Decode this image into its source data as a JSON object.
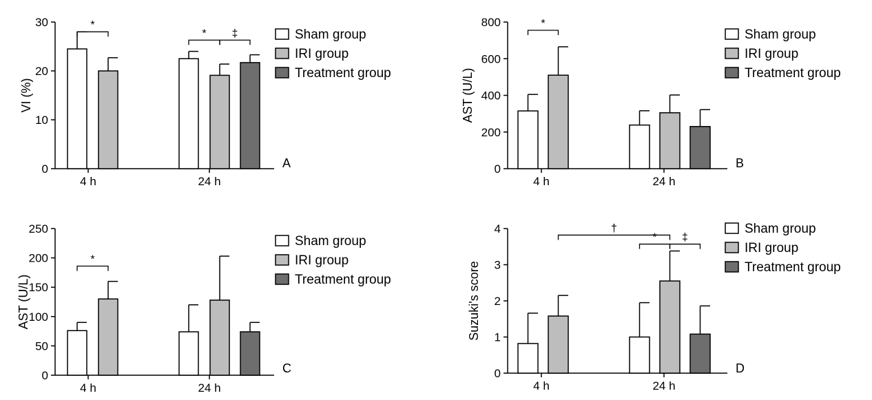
{
  "colors": {
    "sham": "#ffffff",
    "iri": "#bdbdbd",
    "treatment": "#6e6e6e",
    "stroke": "#000000"
  },
  "chart_data": [
    {
      "type": "bar",
      "panel": "A",
      "ylabel": "VI (%)",
      "ylim": [
        0,
        30
      ],
      "yticks": [
        0,
        10,
        20,
        30
      ],
      "categories": [
        "4 h",
        "24 h"
      ],
      "legend": [
        "Sham group",
        "IRI group",
        "Treatment group"
      ],
      "bars": [
        {
          "group": 0,
          "series": 0,
          "value": 24.5,
          "err": 3.5
        },
        {
          "group": 0,
          "series": 1,
          "value": 20.0,
          "err": 2.7
        },
        {
          "group": 1,
          "series": 0,
          "value": 22.5,
          "err": 1.5
        },
        {
          "group": 1,
          "series": 1,
          "value": 19.1,
          "err": 2.3
        },
        {
          "group": 1,
          "series": 2,
          "value": 21.7,
          "err": 1.6
        }
      ],
      "significance": [
        {
          "group_from": 0,
          "series_from": 0,
          "group_to": 0,
          "series_to": 1,
          "y": 28.0,
          "label": "*"
        },
        {
          "group_from": 1,
          "series_from": 0,
          "group_to": 1,
          "series_to": 1,
          "y": 26.3,
          "label": "*"
        },
        {
          "group_from": 1,
          "series_from": 1,
          "group_to": 1,
          "series_to": 2,
          "y": 26.3,
          "label": "‡"
        }
      ]
    },
    {
      "type": "bar",
      "panel": "B",
      "ylabel": "AST (U/L)",
      "ylim": [
        0,
        800
      ],
      "yticks": [
        0,
        200,
        400,
        600,
        800
      ],
      "categories": [
        "4 h",
        "24 h"
      ],
      "legend": [
        "Sham group",
        "IRI group",
        "Treatment group"
      ],
      "bars": [
        {
          "group": 0,
          "series": 0,
          "value": 315,
          "err": 90
        },
        {
          "group": 0,
          "series": 1,
          "value": 510,
          "err": 155
        },
        {
          "group": 1,
          "series": 0,
          "value": 238,
          "err": 78
        },
        {
          "group": 1,
          "series": 1,
          "value": 305,
          "err": 97
        },
        {
          "group": 1,
          "series": 2,
          "value": 230,
          "err": 92
        }
      ],
      "significance": [
        {
          "group_from": 0,
          "series_from": 0,
          "group_to": 0,
          "series_to": 1,
          "y": 755,
          "label": "*"
        }
      ]
    },
    {
      "type": "bar",
      "panel": "C",
      "ylabel": "AST (U/L)",
      "ylim": [
        0,
        250
      ],
      "yticks": [
        0,
        50,
        100,
        150,
        200,
        250
      ],
      "categories": [
        "4 h",
        "24 h"
      ],
      "legend": [
        "Sham group",
        "IRI group",
        "Treatment group"
      ],
      "bars": [
        {
          "group": 0,
          "series": 0,
          "value": 76,
          "err": 14
        },
        {
          "group": 0,
          "series": 1,
          "value": 130,
          "err": 30
        },
        {
          "group": 1,
          "series": 0,
          "value": 74,
          "err": 46
        },
        {
          "group": 1,
          "series": 1,
          "value": 128,
          "err": 75
        },
        {
          "group": 1,
          "series": 2,
          "value": 74,
          "err": 16
        }
      ],
      "significance": [
        {
          "group_from": 0,
          "series_from": 0,
          "group_to": 0,
          "series_to": 1,
          "y": 186,
          "label": "*"
        }
      ]
    },
    {
      "type": "bar",
      "panel": "D",
      "ylabel": "Suzuki's score",
      "ylim": [
        0,
        4
      ],
      "yticks": [
        0,
        1,
        2,
        3,
        4
      ],
      "categories": [
        "4 h",
        "24 h"
      ],
      "legend": [
        "Sham group",
        "IRI group",
        "Treatment group"
      ],
      "bars": [
        {
          "group": 0,
          "series": 0,
          "value": 0.82,
          "err": 0.84
        },
        {
          "group": 0,
          "series": 1,
          "value": 1.58,
          "err": 0.57
        },
        {
          "group": 1,
          "series": 0,
          "value": 1.0,
          "err": 0.95
        },
        {
          "group": 1,
          "series": 1,
          "value": 2.55,
          "err": 0.83
        },
        {
          "group": 1,
          "series": 2,
          "value": 1.08,
          "err": 0.78
        }
      ],
      "significance": [
        {
          "group_from": 0,
          "series_from": 1,
          "group_to": 1,
          "series_to": 1,
          "y": 3.82,
          "label": "†"
        },
        {
          "group_from": 1,
          "series_from": 0,
          "group_to": 1,
          "series_to": 1,
          "y": 3.57,
          "label": "*"
        },
        {
          "group_from": 1,
          "series_from": 1,
          "group_to": 1,
          "series_to": 2,
          "y": 3.57,
          "label": "‡"
        }
      ]
    }
  ]
}
